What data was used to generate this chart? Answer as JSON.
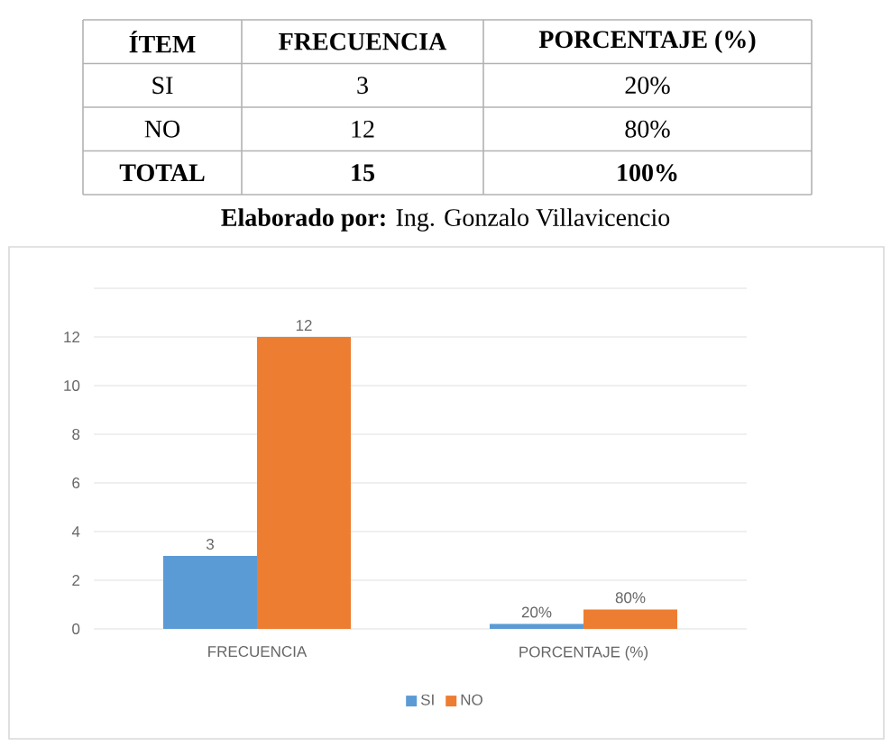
{
  "chart_data": [
    {
      "type": "other",
      "ylabel": "ÍTEM",
      "categories": [
        "FRECUENCIA",
        "PORCENTAJE (%)"
      ],
      "y_categories": [
        "SI",
        "NO",
        "TOTAL"
      ],
      "cell_labels": [
        [
          "3",
          "20%"
        ],
        [
          "12",
          "80%"
        ],
        [
          "15",
          "100%"
        ]
      ],
      "annotations": [
        "**Elaborado por:** Ing. Gonzalo Villavicencio"
      ]
    },
    {
      "type": "bar",
      "categories": [
        "FRECUENCIA",
        "PORCENTAJE (%)"
      ],
      "series": [
        {
          "name": "SI",
          "color": "#5b9bd5",
          "values": [
            3,
            0.2
          ],
          "value_labels": [
            "3",
            "20%"
          ]
        },
        {
          "name": "NO",
          "color": "#ed7d31",
          "values": [
            12,
            0.8
          ],
          "value_labels": [
            "12",
            "80%"
          ]
        }
      ],
      "ylim": [
        0,
        14
      ],
      "yticks": [
        0,
        2,
        4,
        6,
        8,
        10,
        12,
        {
          "value": 14,
          "label": null
        }
      ],
      "grid": "y",
      "legend": "bottom"
    }
  ]
}
